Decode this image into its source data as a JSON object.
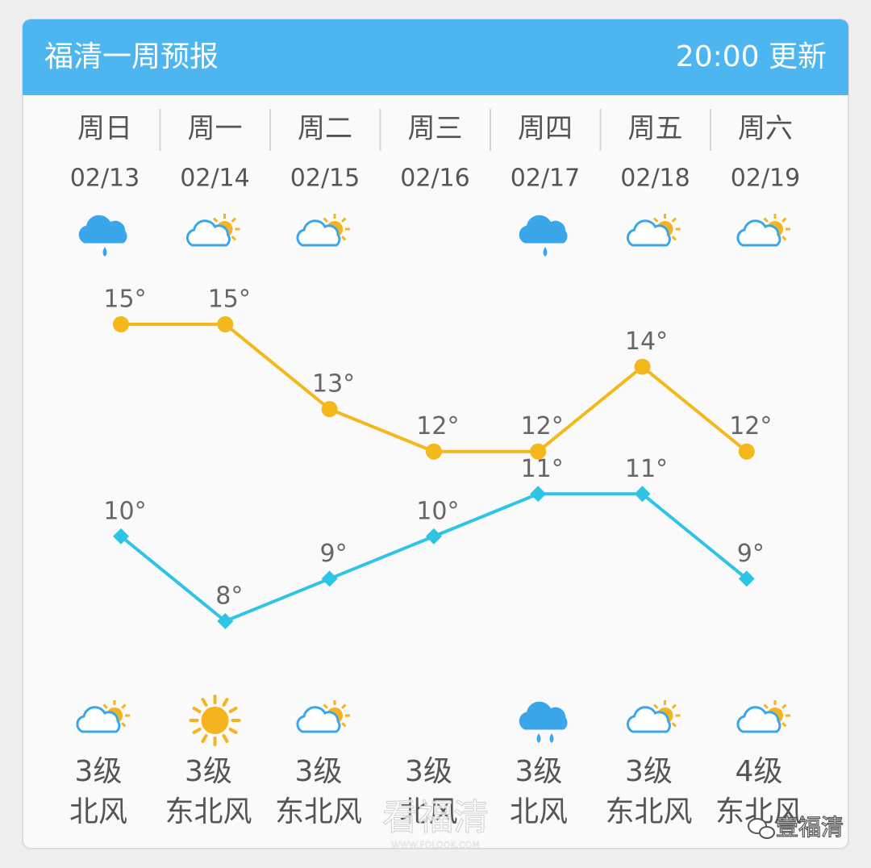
{
  "header": {
    "title": "福清一周预报",
    "update": "20:00 更新"
  },
  "days": [
    {
      "weekday": "周日",
      "date": "02/13",
      "day_icon": "rain",
      "night_icon": "partly_cloudy",
      "wind_level": "3级",
      "wind_dir": "北风"
    },
    {
      "weekday": "周一",
      "date": "02/14",
      "day_icon": "partly_cloudy",
      "night_icon": "sunny",
      "wind_level": "3级",
      "wind_dir": "东北风"
    },
    {
      "weekday": "周二",
      "date": "02/15",
      "day_icon": "partly_cloudy",
      "night_icon": "partly_cloudy",
      "wind_level": "3级",
      "wind_dir": "东北风"
    },
    {
      "weekday": "周三",
      "date": "02/16",
      "day_icon": null,
      "night_icon": null,
      "wind_level": "3级",
      "wind_dir": "北风"
    },
    {
      "weekday": "周四",
      "date": "02/17",
      "day_icon": "rain",
      "night_icon": "shower",
      "wind_level": "3级",
      "wind_dir": "北风"
    },
    {
      "weekday": "周五",
      "date": "02/18",
      "day_icon": "partly_cloudy",
      "night_icon": "partly_cloudy",
      "wind_level": "3级",
      "wind_dir": "东北风"
    },
    {
      "weekday": "周六",
      "date": "02/19",
      "day_icon": "partly_cloudy",
      "night_icon": "partly_cloudy",
      "wind_level": "4级",
      "wind_dir": "东北风"
    }
  ],
  "chart_data": {
    "type": "line",
    "series": [
      {
        "color": "#f4b81c",
        "marker": "circle",
        "values": [
          15,
          15,
          13,
          12,
          12,
          14,
          12
        ],
        "value_labels": [
          "15°",
          "15°",
          "13°",
          "12°",
          "12°",
          "14°",
          "12°"
        ]
      },
      {
        "color": "#2ec4e6",
        "marker": "diamond",
        "values": [
          10,
          8,
          9,
          10,
          11,
          11,
          9
        ],
        "value_labels": [
          "10°",
          "8°",
          "9°",
          "10°",
          "11°",
          "11°",
          "9°"
        ]
      }
    ]
  },
  "watermarks": [
    "看福清",
    "WWW.FQLOOK.COM",
    "壹福清"
  ]
}
